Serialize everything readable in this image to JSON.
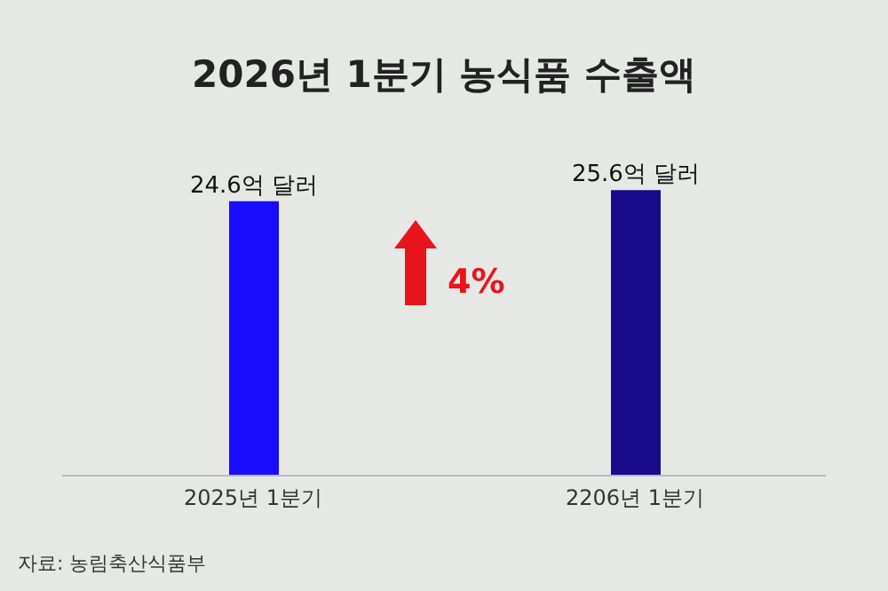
{
  "chart_data": {
    "type": "bar",
    "title": "2026년 1분기 농식품 수출액",
    "categories": [
      "2025년 1분기",
      "2206년 1분기"
    ],
    "values": [
      24.6,
      25.6
    ],
    "colors": [
      "#1a0dff",
      "#1a0a8c"
    ],
    "value_labels": [
      "24.6억 달러",
      "25.6억 달러"
    ],
    "tick_labels": "x",
    "annotations": [
      "4%",
      "자료: 농림축산식품부"
    ]
  }
}
